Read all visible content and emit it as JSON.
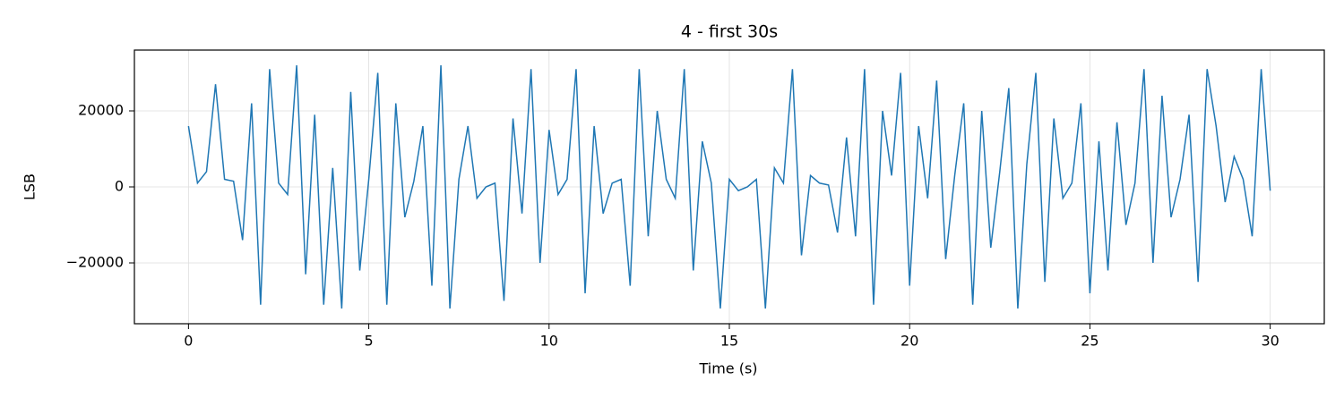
{
  "chart_data": {
    "type": "line",
    "title": "4 - first 30s",
    "xlabel": "Time (s)",
    "ylabel": "LSB",
    "x": [
      0,
      0.25,
      0.5,
      0.75,
      1,
      1.25,
      1.5,
      1.75,
      2,
      2.25,
      2.5,
      2.75,
      3,
      3.25,
      3.5,
      3.75,
      4,
      4.25,
      4.5,
      4.75,
      5,
      5.25,
      5.5,
      5.75,
      6,
      6.25,
      6.5,
      6.75,
      7,
      7.25,
      7.5,
      7.75,
      8,
      8.25,
      8.5,
      8.75,
      9,
      9.25,
      9.5,
      9.75,
      10,
      10.25,
      10.5,
      10.75,
      11,
      11.25,
      11.5,
      11.75,
      12,
      12.25,
      12.5,
      12.75,
      13,
      13.25,
      13.5,
      13.75,
      14,
      14.25,
      14.5,
      14.75,
      15,
      15.25,
      15.5,
      15.75,
      16,
      16.25,
      16.5,
      16.75,
      17,
      17.25,
      17.5,
      17.75,
      18,
      18.25,
      18.5,
      18.75,
      19,
      19.25,
      19.5,
      19.75,
      20,
      20.25,
      20.5,
      20.75,
      21,
      21.25,
      21.5,
      21.75,
      22,
      22.25,
      22.5,
      22.75,
      23,
      23.25,
      23.5,
      23.75,
      24,
      24.25,
      24.5,
      24.75,
      25,
      25.25,
      25.5,
      25.75,
      26,
      26.25,
      26.5,
      26.75,
      27,
      27.25,
      27.5,
      27.75,
      28,
      28.25,
      28.5,
      28.75,
      29,
      29.25,
      29.5,
      29.75,
      30
    ],
    "values": [
      16000,
      1000,
      4000,
      27000,
      2000,
      1500,
      -14000,
      22000,
      -31000,
      31000,
      1000,
      -2000,
      32000,
      -23000,
      19000,
      -31000,
      5000,
      -32000,
      25000,
      -22000,
      2000,
      30000,
      -31000,
      22000,
      -8000,
      1500,
      16000,
      -26000,
      32000,
      -32000,
      2000,
      16000,
      -3000,
      0,
      1000,
      -30000,
      18000,
      -7000,
      31000,
      -20000,
      15000,
      -2000,
      2000,
      31000,
      -28000,
      16000,
      -7000,
      1000,
      2000,
      -26000,
      31000,
      -13000,
      20000,
      2000,
      -3000,
      31000,
      -22000,
      12000,
      1000,
      -32000,
      2000,
      -1000,
      0,
      2000,
      -32000,
      5000,
      1000,
      31000,
      -18000,
      3000,
      1000,
      500,
      -12000,
      13000,
      -13000,
      31000,
      -31000,
      20000,
      3000,
      30000,
      -26000,
      16000,
      -3000,
      28000,
      -19000,
      3000,
      22000,
      -31000,
      20000,
      -16000,
      4000,
      26000,
      -32000,
      6000,
      30000,
      -25000,
      18000,
      -3000,
      1000,
      22000,
      -28000,
      12000,
      -22000,
      17000,
      -10000,
      1000,
      31000,
      -20000,
      24000,
      -8000,
      2000,
      19000,
      -25000,
      31000,
      16000,
      -4000,
      8000,
      2000,
      -13000,
      31000,
      -1000
    ],
    "color": "#1f77b4",
    "xlim": [
      -1.5,
      31.5
    ],
    "xticks": [
      0,
      5,
      10,
      15,
      20,
      25,
      30
    ],
    "ylim": [
      -36000,
      36000
    ],
    "yticks": [
      {
        "value": -20000,
        "label": "−20000"
      },
      0,
      20000
    ],
    "grid": true
  }
}
